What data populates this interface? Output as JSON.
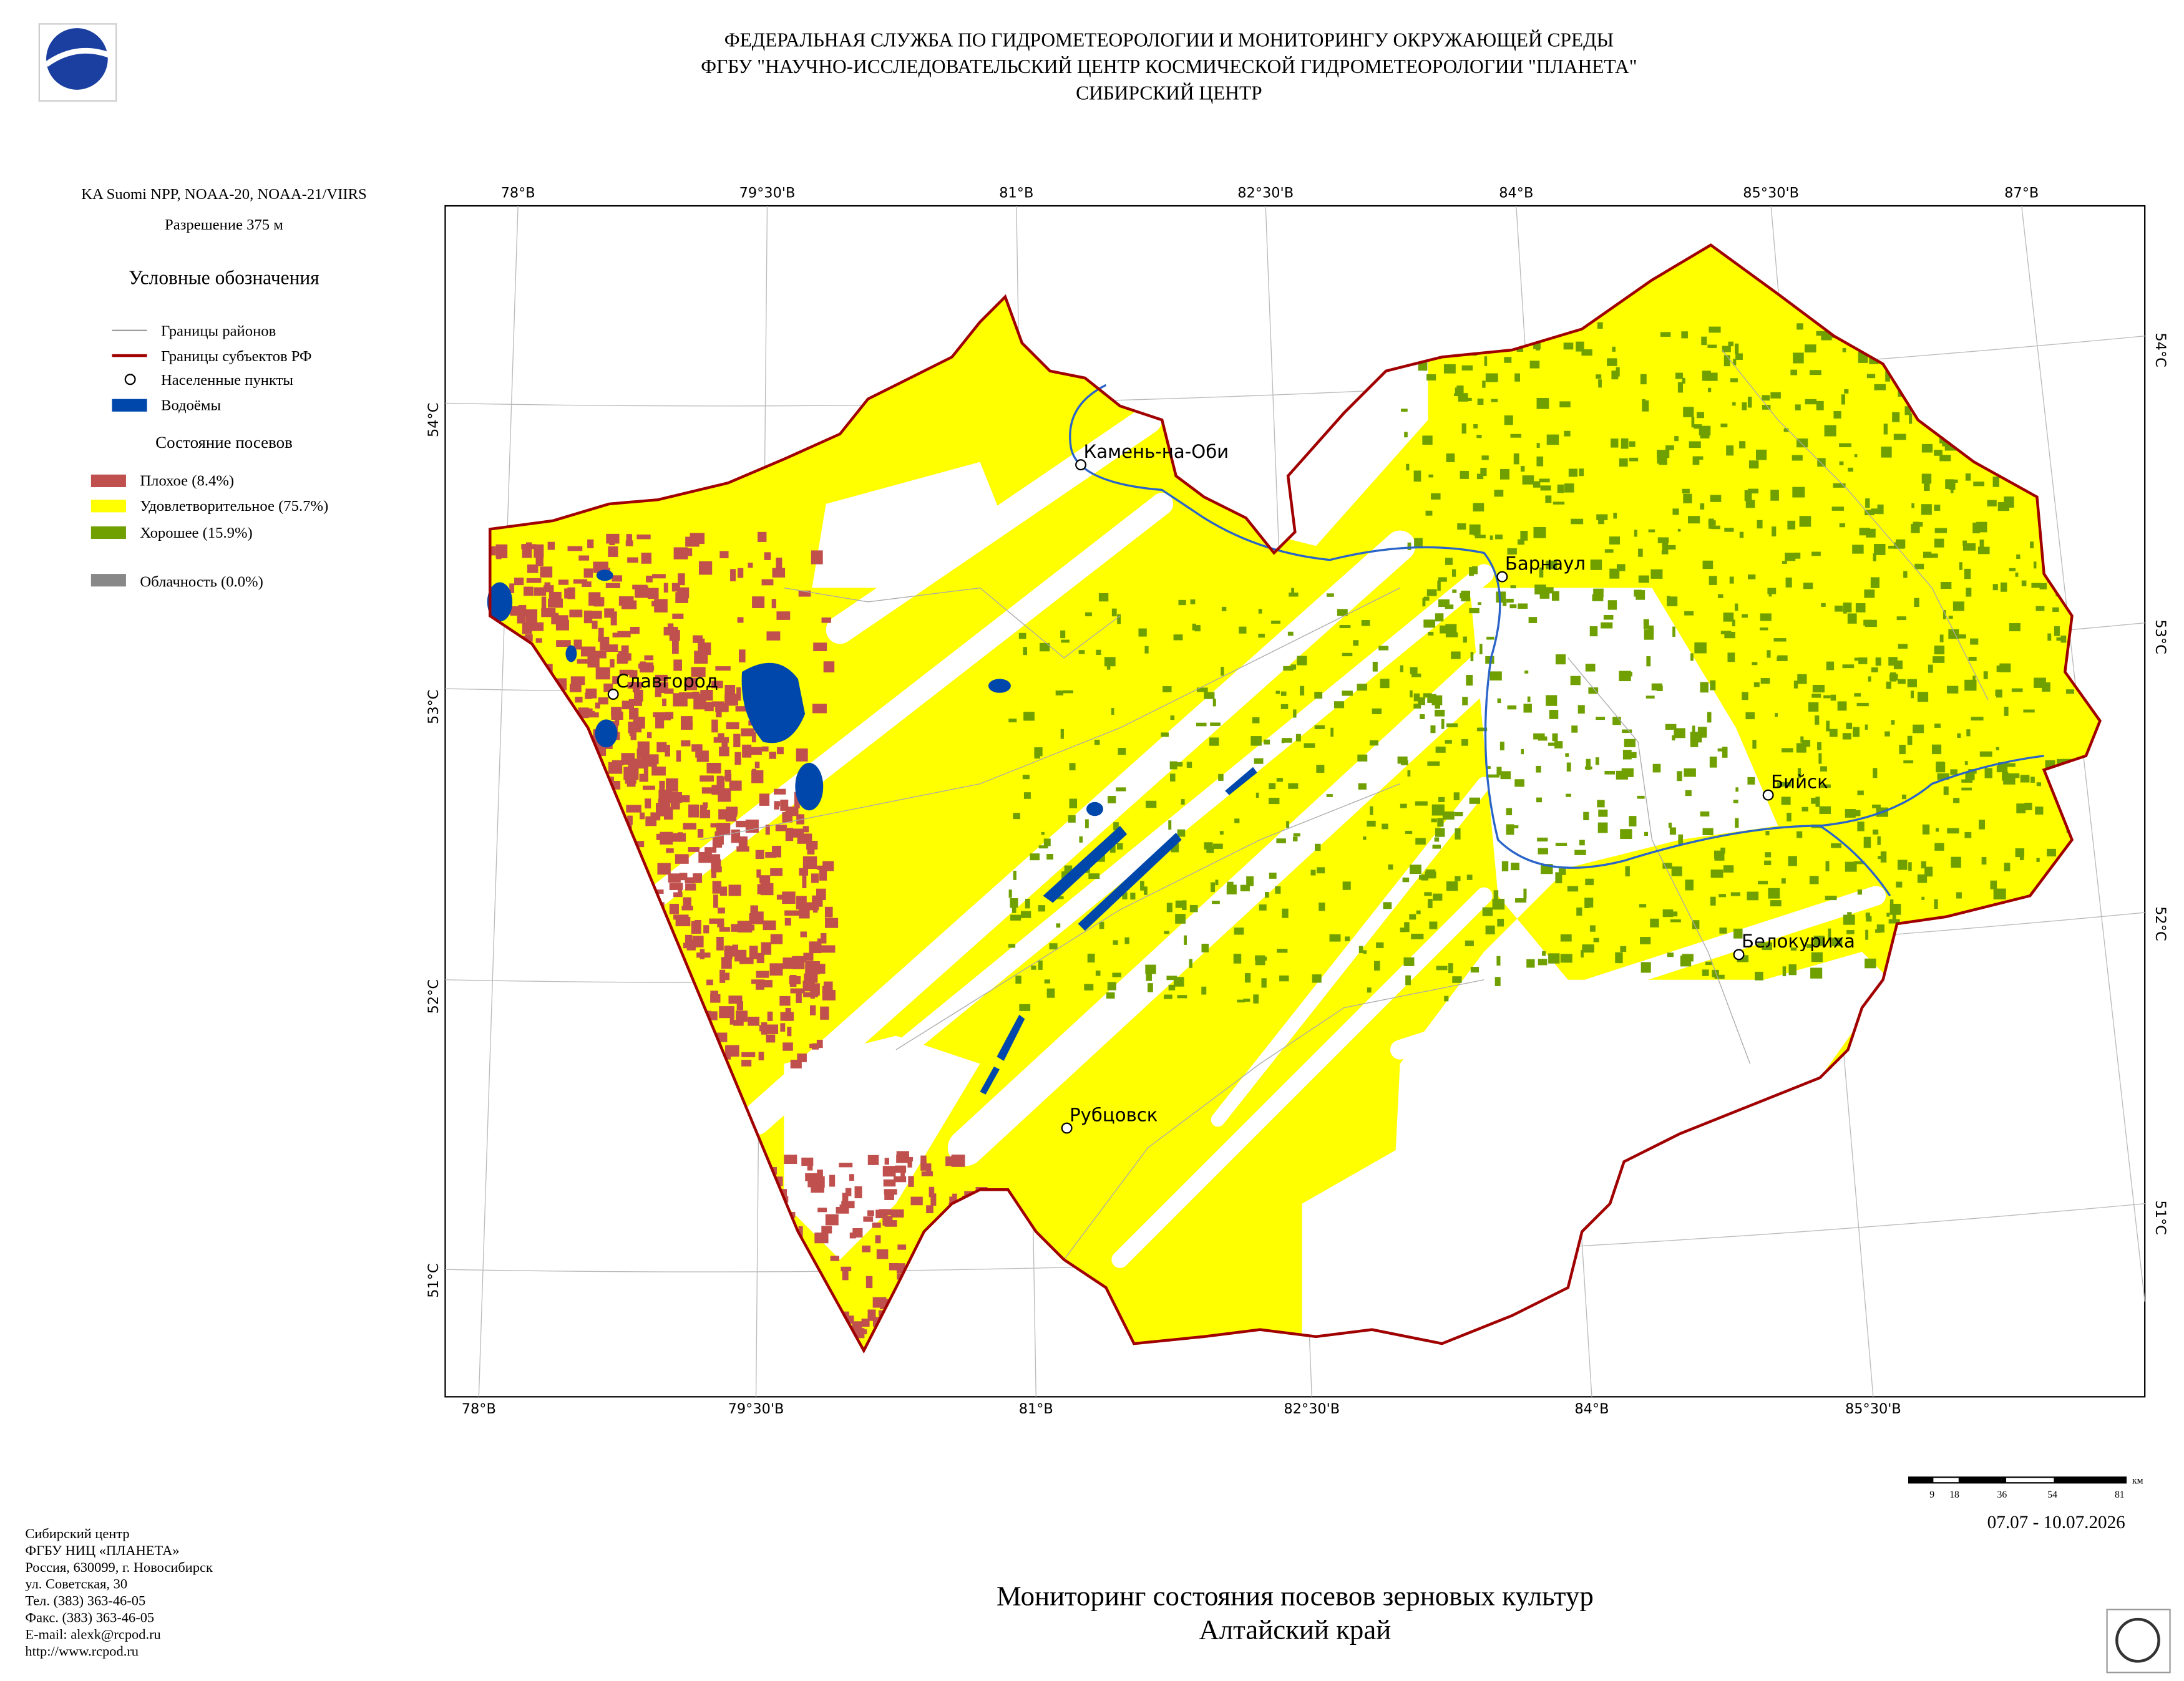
{
  "header": {
    "lines": [
      "ФЕДЕРАЛЬНАЯ СЛУЖБА ПО ГИДРОМЕТЕОРОЛОГИИ И МОНИТОРИНГУ ОКРУЖАЮЩЕЙ СРЕДЫ",
      "ФГБУ \"НАУЧНО-ИССЛЕДОВАТЕЛЬСКИЙ ЦЕНТР КОСМИЧЕСКОЙ ГИДРОМЕТЕОРОЛОГИИ \"ПЛАНЕТА\"",
      "СИБИРСКИЙ ЦЕНТР"
    ]
  },
  "info": {
    "satellite": "KA Suomi NPP, NOAA-20, NOAA-21/VIIRS",
    "resolution": "Разрешение 375 м"
  },
  "legend": {
    "title": "Условные обозначения",
    "items": [
      "Границы районов",
      "Границы субъектов РФ",
      "Населенные пункты",
      "Водоёмы"
    ],
    "crops_title": "Состояние посевов",
    "crops": [
      "Плохое (8.4%)",
      "Удовлетворительное (75.7%)",
      "Хорошее (15.9%)"
    ],
    "cloud": "Облачность (0.0%)"
  },
  "map": {
    "lon_top": [
      "78°В",
      "79°30'В",
      "81°В",
      "82°30'В",
      "84°В",
      "85°30'В",
      "87°В"
    ],
    "lon_bottom": [
      "78°В",
      "79°30'В",
      "81°В",
      "82°30'В",
      "84°В",
      "85°30'В"
    ],
    "lat_left": [
      "54°С",
      "53°С",
      "52°С",
      "51°С"
    ],
    "lat_right": [
      "54°С",
      "53°С",
      "52°С",
      "51°С"
    ],
    "cities": [
      "Камень-на-Оби",
      "Барнаул",
      "Славгород",
      "Бийск",
      "Белокуриха",
      "Рубцовск"
    ]
  },
  "scale": {
    "labels": [
      "9",
      "18",
      "36",
      "54",
      "81"
    ],
    "unit": "км"
  },
  "date": "07.07 - 10.07.2026",
  "title": {
    "lines": [
      "Мониторинг состояния посевов зерновых культур",
      "Алтайский край"
    ]
  },
  "contacts": [
    "Сибирский центр",
    "ФГБУ НИЦ «ПЛАНЕТА»",
    "Россия, 630099, г. Новосибирск",
    "ул. Советская, 30",
    "Тел. (383) 363-46-05",
    "Факс. (383) 363-46-05",
    "E-mail: alexk@rcpod.ru",
    "http://www.rcpod.ru"
  ]
}
